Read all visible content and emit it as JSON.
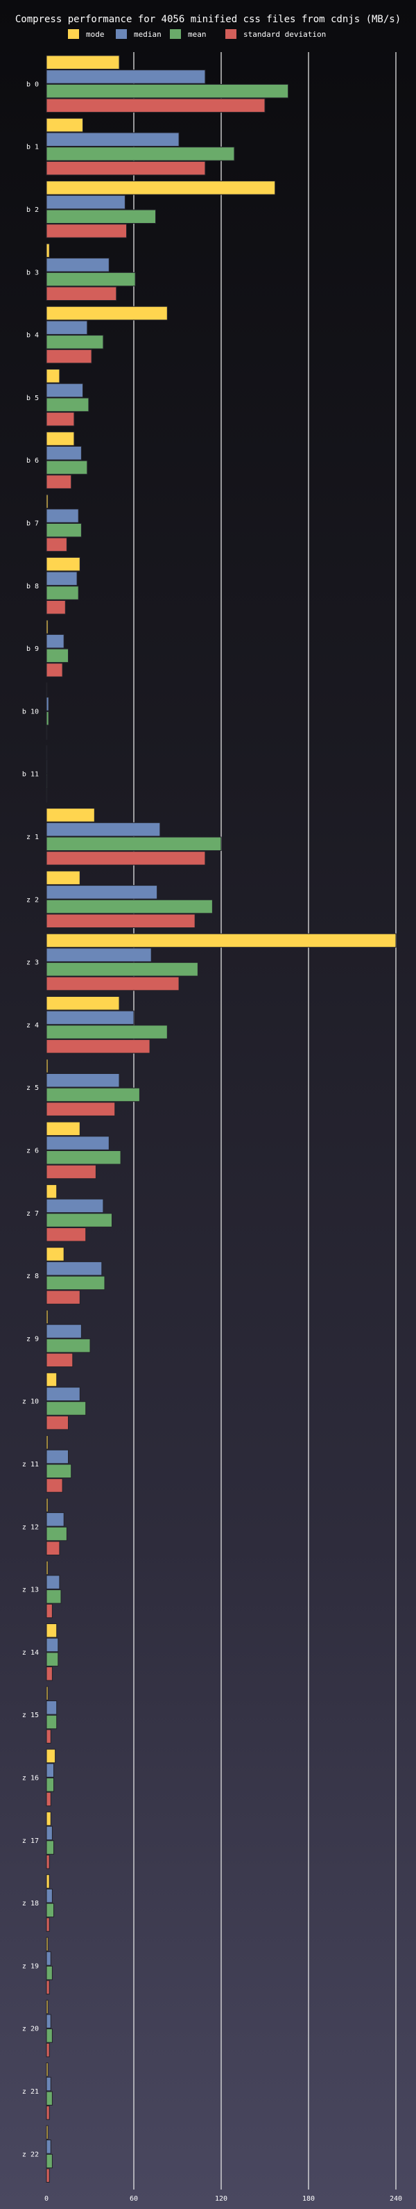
{
  "chart_data": {
    "type": "bar",
    "orientation": "horizontal",
    "title": "Compress performance for 4056 minified css files from cdnjs (MB/s)",
    "xlabel": "",
    "ylabel": "",
    "xlim": [
      0,
      250
    ],
    "x_ticks": [
      0,
      60,
      120,
      180,
      240
    ],
    "grid": true,
    "legend_position": "top",
    "categories": [
      "b 0",
      "b 1",
      "b 2",
      "b 3",
      "b 4",
      "b 5",
      "b 6",
      "b 7",
      "b 8",
      "b 9",
      "b 10",
      "b 11",
      "z 1",
      "z 2",
      "z 3",
      "z 4",
      "z 5",
      "z 6",
      "z 7",
      "z 8",
      "z 9",
      "z 10",
      "z 11",
      "z 12",
      "z 13",
      "z 14",
      "z 15",
      "z 16",
      "z 17",
      "z 18",
      "z 19",
      "z 20",
      "z 21",
      "z 22"
    ],
    "series": [
      {
        "name": "mode",
        "color": "#ffd54f",
        "values": [
          50,
          25,
          157,
          2,
          83,
          9,
          19,
          1,
          23,
          1,
          0.3,
          0.3,
          33,
          23,
          240,
          50,
          1,
          23,
          7,
          12,
          1,
          7,
          1,
          1,
          1,
          7,
          1,
          6,
          3,
          2,
          1,
          1,
          1,
          1
        ]
      },
      {
        "name": "median",
        "color": "#6b87b8",
        "values": [
          109,
          91,
          54,
          43,
          28,
          25,
          24,
          22,
          21,
          12,
          1.5,
          0.5,
          78,
          76,
          72,
          60,
          50,
          43,
          39,
          38,
          24,
          23,
          15,
          12,
          9,
          8,
          7,
          5,
          4,
          4,
          3,
          3,
          3,
          3
        ]
      },
      {
        "name": "mean",
        "color": "#6aab6a",
        "values": [
          166,
          129,
          75,
          61,
          39,
          29,
          28,
          24,
          22,
          15,
          1.5,
          0.5,
          120,
          114,
          104,
          83,
          64,
          51,
          45,
          40,
          30,
          27,
          17,
          14,
          10,
          8,
          7,
          5,
          5,
          5,
          4,
          4,
          4,
          4
        ]
      },
      {
        "name": "standard deviation",
        "color": "#d35f5a",
        "values": [
          150,
          109,
          55,
          48,
          31,
          19,
          17,
          14,
          13,
          11,
          0.3,
          0.2,
          109,
          102,
          91,
          71,
          47,
          34,
          27,
          23,
          18,
          15,
          11,
          9,
          4,
          4,
          3,
          3,
          2,
          2,
          2,
          2,
          2,
          2
        ]
      }
    ]
  }
}
